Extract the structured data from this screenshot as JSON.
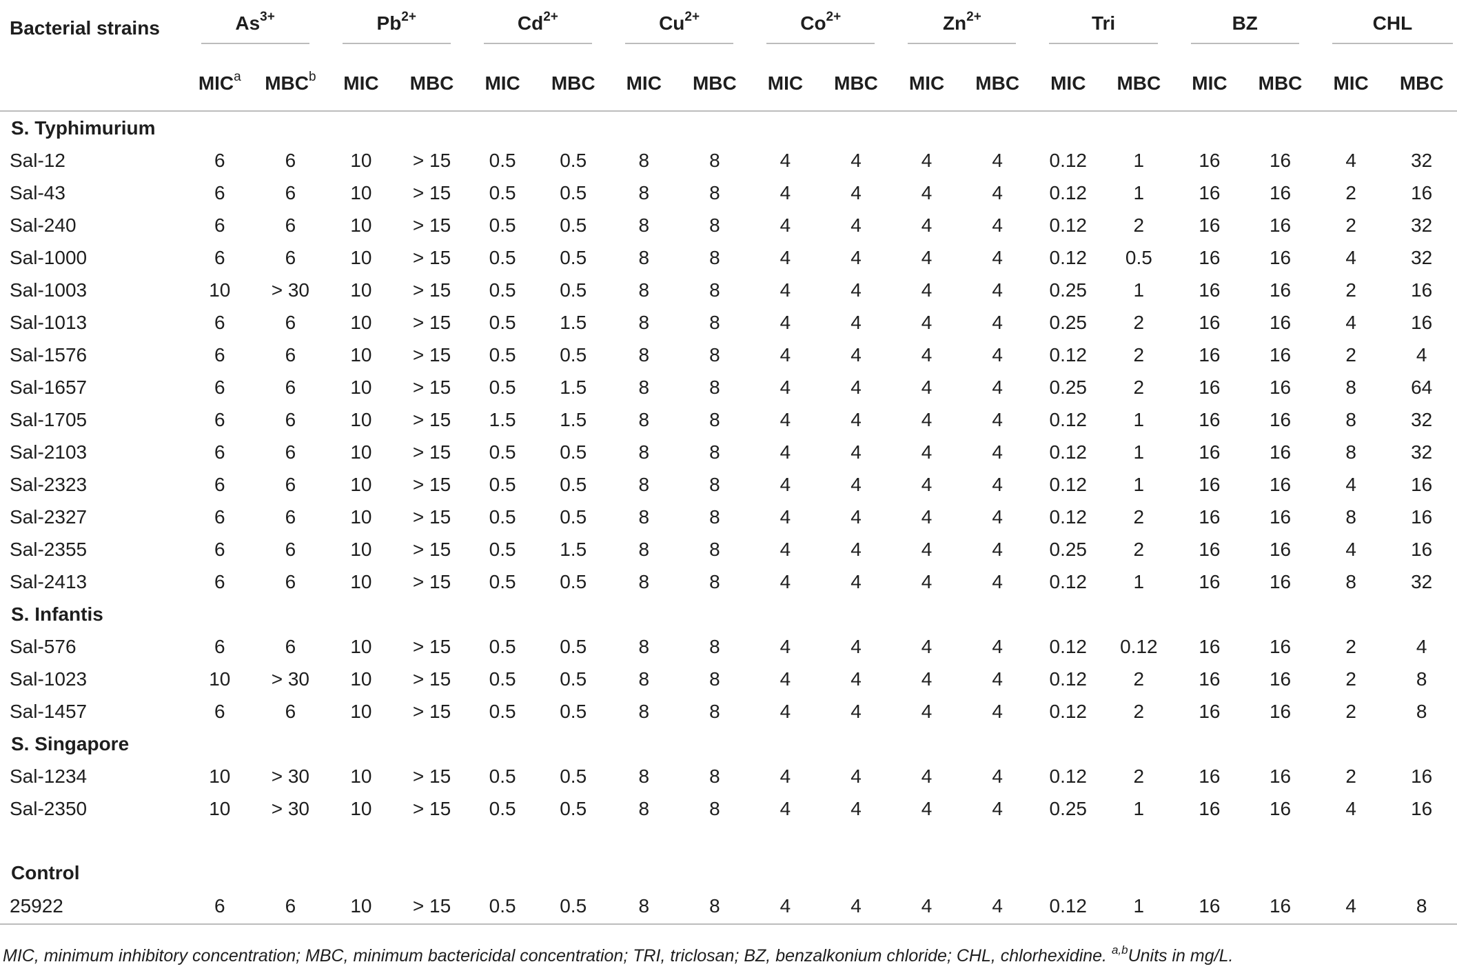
{
  "header": {
    "strain_label": "Bacterial strains",
    "groups": [
      {
        "base": "As",
        "sup": "3+"
      },
      {
        "base": "Pb",
        "sup": "2+"
      },
      {
        "base": "Cd",
        "sup": "2+"
      },
      {
        "base": "Cu",
        "sup": "2+"
      },
      {
        "base": "Co",
        "sup": "2+"
      },
      {
        "base": "Zn",
        "sup": "2+"
      },
      {
        "base": "Tri",
        "sup": ""
      },
      {
        "base": "BZ",
        "sup": ""
      },
      {
        "base": "CHL",
        "sup": ""
      }
    ],
    "mic_label": "MIC",
    "mbc_label": "MBC",
    "mic_sup": "a",
    "mbc_sup": "b"
  },
  "sections": [
    {
      "title": "S. Typhimurium",
      "rows": [
        {
          "strain": "Sal-12",
          "values": [
            "6",
            "6",
            "10",
            "> 15",
            "0.5",
            "0.5",
            "8",
            "8",
            "4",
            "4",
            "4",
            "4",
            "0.12",
            "1",
            "16",
            "16",
            "4",
            "32"
          ]
        },
        {
          "strain": "Sal-43",
          "values": [
            "6",
            "6",
            "10",
            "> 15",
            "0.5",
            "0.5",
            "8",
            "8",
            "4",
            "4",
            "4",
            "4",
            "0.12",
            "1",
            "16",
            "16",
            "2",
            "16"
          ]
        },
        {
          "strain": "Sal-240",
          "values": [
            "6",
            "6",
            "10",
            "> 15",
            "0.5",
            "0.5",
            "8",
            "8",
            "4",
            "4",
            "4",
            "4",
            "0.12",
            "2",
            "16",
            "16",
            "2",
            "32"
          ]
        },
        {
          "strain": "Sal-1000",
          "values": [
            "6",
            "6",
            "10",
            "> 15",
            "0.5",
            "0.5",
            "8",
            "8",
            "4",
            "4",
            "4",
            "4",
            "0.12",
            "0.5",
            "16",
            "16",
            "4",
            "32"
          ]
        },
        {
          "strain": "Sal-1003",
          "values": [
            "10",
            "> 30",
            "10",
            "> 15",
            "0.5",
            "0.5",
            "8",
            "8",
            "4",
            "4",
            "4",
            "4",
            "0.25",
            "1",
            "16",
            "16",
            "2",
            "16"
          ]
        },
        {
          "strain": "Sal-1013",
          "values": [
            "6",
            "6",
            "10",
            "> 15",
            "0.5",
            "1.5",
            "8",
            "8",
            "4",
            "4",
            "4",
            "4",
            "0.25",
            "2",
            "16",
            "16",
            "4",
            "16"
          ]
        },
        {
          "strain": "Sal-1576",
          "values": [
            "6",
            "6",
            "10",
            "> 15",
            "0.5",
            "0.5",
            "8",
            "8",
            "4",
            "4",
            "4",
            "4",
            "0.12",
            "2",
            "16",
            "16",
            "2",
            "4"
          ]
        },
        {
          "strain": "Sal-1657",
          "values": [
            "6",
            "6",
            "10",
            "> 15",
            "0.5",
            "1.5",
            "8",
            "8",
            "4",
            "4",
            "4",
            "4",
            "0.25",
            "2",
            "16",
            "16",
            "8",
            "64"
          ]
        },
        {
          "strain": "Sal-1705",
          "values": [
            "6",
            "6",
            "10",
            "> 15",
            "1.5",
            "1.5",
            "8",
            "8",
            "4",
            "4",
            "4",
            "4",
            "0.12",
            "1",
            "16",
            "16",
            "8",
            "32"
          ]
        },
        {
          "strain": "Sal-2103",
          "values": [
            "6",
            "6",
            "10",
            "> 15",
            "0.5",
            "0.5",
            "8",
            "8",
            "4",
            "4",
            "4",
            "4",
            "0.12",
            "1",
            "16",
            "16",
            "8",
            "32"
          ]
        },
        {
          "strain": "Sal-2323",
          "values": [
            "6",
            "6",
            "10",
            "> 15",
            "0.5",
            "0.5",
            "8",
            "8",
            "4",
            "4",
            "4",
            "4",
            "0.12",
            "1",
            "16",
            "16",
            "4",
            "16"
          ]
        },
        {
          "strain": "Sal-2327",
          "values": [
            "6",
            "6",
            "10",
            "> 15",
            "0.5",
            "0.5",
            "8",
            "8",
            "4",
            "4",
            "4",
            "4",
            "0.12",
            "2",
            "16",
            "16",
            "8",
            "16"
          ]
        },
        {
          "strain": "Sal-2355",
          "values": [
            "6",
            "6",
            "10",
            "> 15",
            "0.5",
            "1.5",
            "8",
            "8",
            "4",
            "4",
            "4",
            "4",
            "0.25",
            "2",
            "16",
            "16",
            "4",
            "16"
          ]
        },
        {
          "strain": "Sal-2413",
          "values": [
            "6",
            "6",
            "10",
            "> 15",
            "0.5",
            "0.5",
            "8",
            "8",
            "4",
            "4",
            "4",
            "4",
            "0.12",
            "1",
            "16",
            "16",
            "8",
            "32"
          ]
        }
      ]
    },
    {
      "title": "S. Infantis",
      "rows": [
        {
          "strain": "Sal-576",
          "values": [
            "6",
            "6",
            "10",
            "> 15",
            "0.5",
            "0.5",
            "8",
            "8",
            "4",
            "4",
            "4",
            "4",
            "0.12",
            "0.12",
            "16",
            "16",
            "2",
            "4"
          ]
        },
        {
          "strain": "Sal-1023",
          "values": [
            "10",
            "> 30",
            "10",
            "> 15",
            "0.5",
            "0.5",
            "8",
            "8",
            "4",
            "4",
            "4",
            "4",
            "0.12",
            "2",
            "16",
            "16",
            "2",
            "8"
          ]
        },
        {
          "strain": "Sal-1457",
          "values": [
            "6",
            "6",
            "10",
            "> 15",
            "0.5",
            "0.5",
            "8",
            "8",
            "4",
            "4",
            "4",
            "4",
            "0.12",
            "2",
            "16",
            "16",
            "2",
            "8"
          ]
        }
      ]
    },
    {
      "title": "S. Singapore",
      "rows": [
        {
          "strain": "Sal-1234",
          "values": [
            "10",
            "> 30",
            "10",
            "> 15",
            "0.5",
            "0.5",
            "8",
            "8",
            "4",
            "4",
            "4",
            "4",
            "0.12",
            "2",
            "16",
            "16",
            "2",
            "16"
          ]
        },
        {
          "strain": "Sal-2350",
          "values": [
            "10",
            "> 30",
            "10",
            "> 15",
            "0.5",
            "0.5",
            "8",
            "8",
            "4",
            "4",
            "4",
            "4",
            "0.25",
            "1",
            "16",
            "16",
            "4",
            "16"
          ]
        }
      ]
    },
    {
      "title": "Control",
      "spacer_before": true,
      "rows": [
        {
          "strain": "25922",
          "values": [
            "6",
            "6",
            "10",
            "> 15",
            "0.5",
            "0.5",
            "8",
            "8",
            "4",
            "4",
            "4",
            "4",
            "0.12",
            "1",
            "16",
            "16",
            "4",
            "8"
          ]
        }
      ]
    }
  ],
  "footnote": {
    "text": "MIC, minimum inhibitory concentration; MBC, minimum bactericidal concentration; TRI, triclosan; BZ, benzalkonium chloride; CHL, chlorhexidine. ",
    "sup": "a,b",
    "tail": "Units in mg/L."
  }
}
